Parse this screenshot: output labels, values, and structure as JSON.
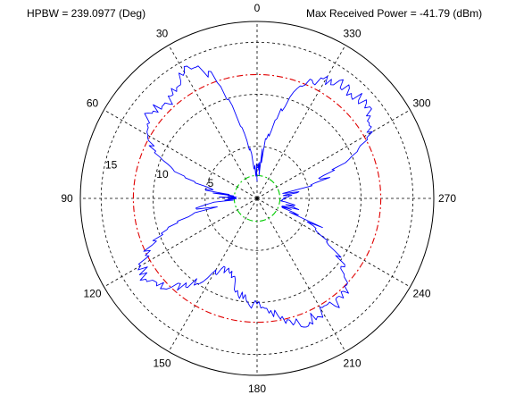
{
  "header": {
    "hpbw": "HPBW = 239.0977 (Deg)",
    "power": "Max Received Power = -41.79 (dBm)"
  },
  "chart_data": {
    "type": "polar",
    "angle_direction": "counterclockwise",
    "zero_direction": "top",
    "angle_ticks": [
      0,
      30,
      60,
      90,
      120,
      150,
      180,
      210,
      240,
      270,
      300,
      330
    ],
    "radial_ticks": [
      5,
      10,
      15
    ],
    "rmax": 17,
    "reference_circles": [
      {
        "radius": 2.2,
        "color": "#00cc00",
        "style": "dashdot"
      },
      {
        "radius": 11.9,
        "color": "#e00000",
        "style": "dashdot"
      }
    ],
    "series": [
      {
        "color": "#0000ff",
        "pattern_points": [
          [
            0,
            2.5
          ],
          [
            5,
            2.8
          ],
          [
            10,
            5
          ],
          [
            15,
            9
          ],
          [
            20,
            12.5
          ],
          [
            25,
            13.7
          ],
          [
            30,
            14.1
          ],
          [
            35,
            13.4
          ],
          [
            40,
            12.6
          ],
          [
            45,
            12.7
          ],
          [
            50,
            13.2
          ],
          [
            55,
            13.0
          ],
          [
            60,
            12.3
          ],
          [
            65,
            10.8
          ],
          [
            70,
            8.8
          ],
          [
            75,
            6.5
          ],
          [
            80,
            4.2
          ],
          [
            85,
            3.0
          ],
          [
            90,
            2.5
          ],
          [
            95,
            3.2
          ],
          [
            100,
            5.0
          ],
          [
            105,
            7.4
          ],
          [
            110,
            9.6
          ],
          [
            115,
            11.6
          ],
          [
            120,
            12.8
          ],
          [
            125,
            13.2
          ],
          [
            130,
            12.9
          ],
          [
            135,
            12.1
          ],
          [
            140,
            11.0
          ],
          [
            145,
            9.6
          ],
          [
            150,
            8.2
          ],
          [
            155,
            7.4
          ],
          [
            160,
            7.4
          ],
          [
            165,
            8.3
          ],
          [
            170,
            9.3
          ],
          [
            175,
            10.0
          ],
          [
            180,
            10.2
          ],
          [
            185,
            10.6
          ],
          [
            190,
            11.6
          ],
          [
            195,
            12.4
          ],
          [
            200,
            12.8
          ],
          [
            205,
            12.7
          ],
          [
            210,
            12.6
          ],
          [
            215,
            12.7
          ],
          [
            220,
            12.6
          ],
          [
            225,
            12.0
          ],
          [
            230,
            11.0
          ],
          [
            235,
            9.4
          ],
          [
            240,
            7.4
          ],
          [
            245,
            5.4
          ],
          [
            250,
            4.0
          ],
          [
            255,
            3.2
          ],
          [
            260,
            2.8
          ],
          [
            265,
            2.5
          ],
          [
            270,
            2.3
          ],
          [
            275,
            2.5
          ],
          [
            280,
            3.2
          ],
          [
            285,
            5.0
          ],
          [
            290,
            7.6
          ],
          [
            295,
            10.4
          ],
          [
            300,
            12.4
          ],
          [
            305,
            13.3
          ],
          [
            310,
            13.7
          ],
          [
            315,
            13.8
          ],
          [
            320,
            13.6
          ],
          [
            325,
            13.6
          ],
          [
            330,
            13.2
          ],
          [
            335,
            12.3
          ],
          [
            340,
            11.0
          ],
          [
            345,
            8.8
          ],
          [
            350,
            5.8
          ],
          [
            355,
            3.2
          ],
          [
            360,
            2.5
          ]
        ]
      }
    ]
  }
}
